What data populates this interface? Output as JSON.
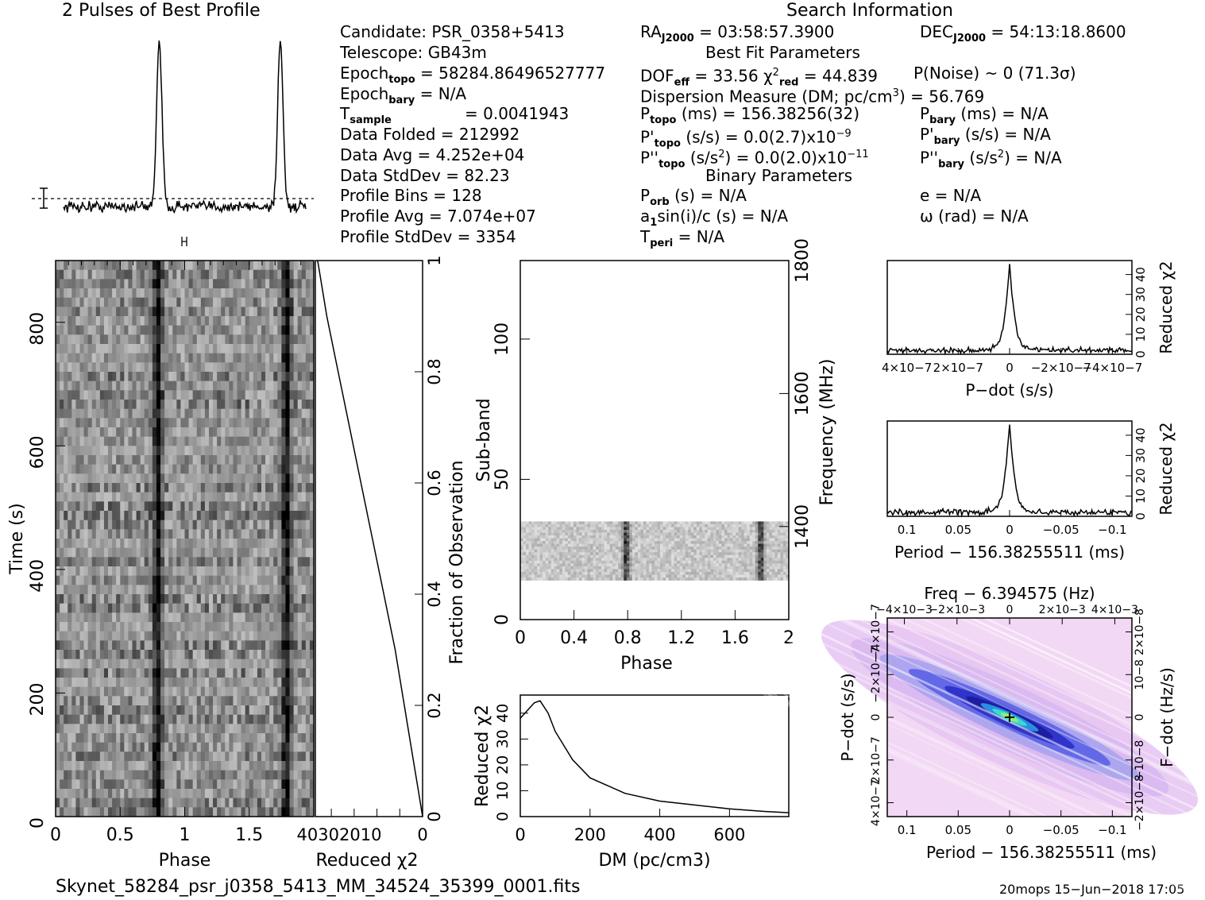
{
  "header": {
    "profile_title": "2 Pulses of Best Profile",
    "search_title": "Search Information"
  },
  "candidate_info": {
    "candidate": "Candidate:  PSR_0358+5413",
    "telescope": "Telescope:  GB43m",
    "epoch_topo": "= 58284.86496527777",
    "epoch_bary": "= N/A",
    "t_sample": "=   0.0041943",
    "data_folded": "Data Folded     =   212992",
    "data_avg": "Data Avg        =   4.252e+04",
    "data_stddev": "Data StdDev     =   82.23",
    "profile_bins": "Profile Bins    =   128",
    "profile_avg": "Profile Avg     =   7.074e+07",
    "profile_stddev": "Profile StdDev  =   3354"
  },
  "search_info": {
    "ra": "= 03:58:57.3900",
    "dec": "= 54:13:18.8600",
    "best_fit_title": "Best Fit Parameters",
    "dof": "= 33.56",
    "chi2_red": "= 44.839",
    "p_noise": "P(Noise) ~ 0   (71.3σ)",
    "dm": "Dispersion Measure (DM; pc/cm",
    "dm_value": ") = 56.769",
    "p_topo": "(ms) =  156.38256(32)",
    "p_bary": "(ms) = N/A",
    "pd_topo": "(s/s) = 0.0(2.7)x10",
    "pd_topo_exp": "−9",
    "pd_bary": "(s/s) = N/A",
    "pdd_topo": "(s/s",
    "pdd_topo_val": ") = 0.0(2.0)x10",
    "pdd_topo_exp": "−11",
    "pdd_bary": ") = N/A",
    "binary_title": "Binary Parameters",
    "p_orb": "(s) = N/A",
    "a1sini": "sin(i)/c (s) = N/A",
    "t_peri": "= N/A",
    "e": "e = N/A",
    "omega": "ω (rad) = N/A"
  },
  "footer": {
    "filename": "Skynet_58284_psr_j0358_5413_MM_34524_35399_0001.fits",
    "stamp": "20mops 15−Jun−2018 17:05"
  },
  "chart_data": [
    {
      "id": "profile",
      "type": "line",
      "title": "2 Pulses of Best Profile",
      "xlabel": "",
      "ylabel": "",
      "xlim": [
        0,
        2
      ],
      "peaks": [
        0.79,
        1.79
      ],
      "peak_height": 1.0,
      "baseline_level": 0.03,
      "noise_level": 0.03
    },
    {
      "id": "time-phase",
      "type": "heatmap",
      "xlabel": "Phase",
      "ylabel": "Time (s)",
      "xlim": [
        0,
        2
      ],
      "ylim": [
        0,
        900
      ],
      "x_ticks": [
        "0",
        "0.5",
        "1",
        "1.5"
      ],
      "y_ticks": [
        "0",
        "200",
        "400",
        "600",
        "800"
      ],
      "pulse_phase": [
        0.79,
        1.79
      ]
    },
    {
      "id": "time-chi2",
      "type": "line",
      "xlabel": "Reduced χ2",
      "ylabel": "Fraction of Observation",
      "x_ticks": [
        "40",
        "30",
        "20",
        "10",
        "0"
      ],
      "y_ticks": [
        "0",
        "0.2",
        "0.4",
        "0.6",
        "0.8",
        "1"
      ],
      "x": [
        0.0,
        0.05,
        0.1,
        0.2,
        0.3,
        0.4,
        0.5,
        0.6,
        0.7,
        0.8,
        0.9,
        1.0
      ],
      "values": [
        0,
        2,
        4,
        8,
        12,
        17,
        22,
        27,
        32,
        37,
        42,
        46
      ]
    },
    {
      "id": "subband-phase",
      "type": "heatmap",
      "xlabel": "Phase",
      "ylabel": "Sub-band",
      "y2label": "Frequency (MHz)",
      "x_ticks": [
        "0",
        "0.4",
        "0.8",
        "1.2",
        "1.6",
        "2"
      ],
      "y_ticks": [
        "0",
        "50",
        "100"
      ],
      "y2_ticks": [
        "1400",
        "1600",
        "1800"
      ],
      "xlim": [
        0,
        2
      ],
      "ylim": [
        0,
        128
      ],
      "band_range": [
        14,
        35
      ],
      "pulse_phase": [
        0.79,
        1.79
      ]
    },
    {
      "id": "dm-chi2",
      "type": "line",
      "xlabel": "DM (pc/cm3)",
      "ylabel": "Reduced χ2",
      "x_ticks": [
        "0",
        "200",
        "400",
        "600"
      ],
      "y_ticks": [
        "0",
        "10",
        "20",
        "30",
        "40"
      ],
      "xlim": [
        0,
        770
      ],
      "ylim": [
        0,
        47
      ],
      "x": [
        0,
        20,
        40,
        56.8,
        80,
        100,
        150,
        200,
        300,
        400,
        500,
        600,
        700,
        770
      ],
      "values": [
        38,
        41,
        44,
        44.8,
        40,
        33,
        22,
        15,
        9,
        6,
        4.5,
        3,
        2,
        1.5
      ]
    },
    {
      "id": "pdot-chi2",
      "type": "line",
      "xlabel": "P−dot (s/s)",
      "ylabel": "Reduced χ2",
      "x_ticks": [
        "4×10−7",
        "2×10−7",
        "0",
        "−2×10−7",
        "−4×10−7"
      ],
      "y_ticks": [
        "0",
        "10",
        "20",
        "30",
        "40"
      ],
      "xlim": [
        5e-07,
        -5e-07
      ],
      "ylim": [
        0,
        47
      ],
      "peak": 44.8
    },
    {
      "id": "period-chi2",
      "type": "line",
      "xlabel": "Period − 156.38255511 (ms)",
      "ylabel": "Reduced χ2",
      "x_ticks": [
        "0.1",
        "0.05",
        "0",
        "−0.05",
        "−0.1"
      ],
      "y_ticks": [
        "0",
        "10",
        "20",
        "30",
        "40"
      ],
      "xlim": [
        0.11,
        -0.11
      ],
      "ylim": [
        0,
        47
      ],
      "peak": 44.8
    },
    {
      "id": "p-pdot-map",
      "type": "heatmap",
      "title": "Freq − 6.394575 (Hz)",
      "xlabel": "Period − 156.38255511 (ms)",
      "ylabel": "P−dot (s/s)",
      "y2label": "F−dot (Hz/s)",
      "x_ticks": [
        "0.1",
        "0.05",
        "0",
        "−0.05",
        "−0.1"
      ],
      "top_ticks": [
        "−4×10−3",
        "−2×10−3",
        "0",
        "2×10−3",
        "4×10−3"
      ],
      "y_ticks": [
        "4×10−7",
        "2×10−7",
        "0",
        "−2×10−7",
        "−4×10−7"
      ],
      "y2_ticks": [
        "−2×10−8",
        "−10−8",
        "0",
        "10−8",
        "2×10−8"
      ]
    }
  ]
}
